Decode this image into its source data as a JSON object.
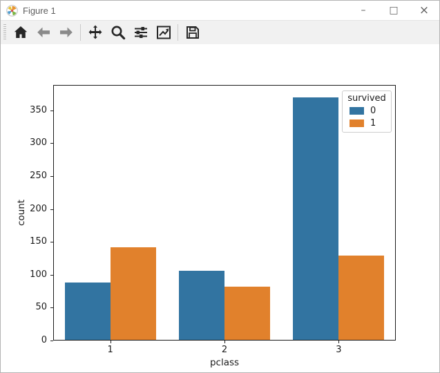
{
  "window": {
    "title": "Figure 1",
    "controls": [
      {
        "name": "minimize",
        "glyph": "–"
      },
      {
        "name": "maximize",
        "glyph": "□"
      },
      {
        "name": "close",
        "glyph": "×"
      }
    ]
  },
  "toolbar": {
    "buttons": [
      "home",
      "back",
      "forward",
      "pan",
      "zoom-to-rect",
      "configure-subplots",
      "edit-parameters",
      "save"
    ],
    "disabled_buttons": [
      "back",
      "forward"
    ]
  },
  "chart_data": {
    "type": "bar",
    "title": "",
    "categories": [
      "1",
      "2",
      "3"
    ],
    "series": [
      {
        "name": "0",
        "color": "#3274A1",
        "values": [
          88,
          106,
          370
        ]
      },
      {
        "name": "1",
        "color": "#E1812C",
        "values": [
          142,
          82,
          129
        ]
      }
    ],
    "xlabel": "pclass",
    "ylabel": "count",
    "ylim": [
      0,
      388.5
    ],
    "yticks": [
      0,
      50,
      100,
      150,
      200,
      250,
      300,
      350
    ],
    "grid": false,
    "bar_group_width": 0.8,
    "legend": {
      "title": "survived",
      "position": "upper right"
    }
  },
  "colors": {
    "survived_0": "#3274A1",
    "survived_1": "#E1812C",
    "toolbar_bg": "#f1f1f1",
    "icon": "#262626",
    "icon_disabled": "#8a8a8a"
  }
}
